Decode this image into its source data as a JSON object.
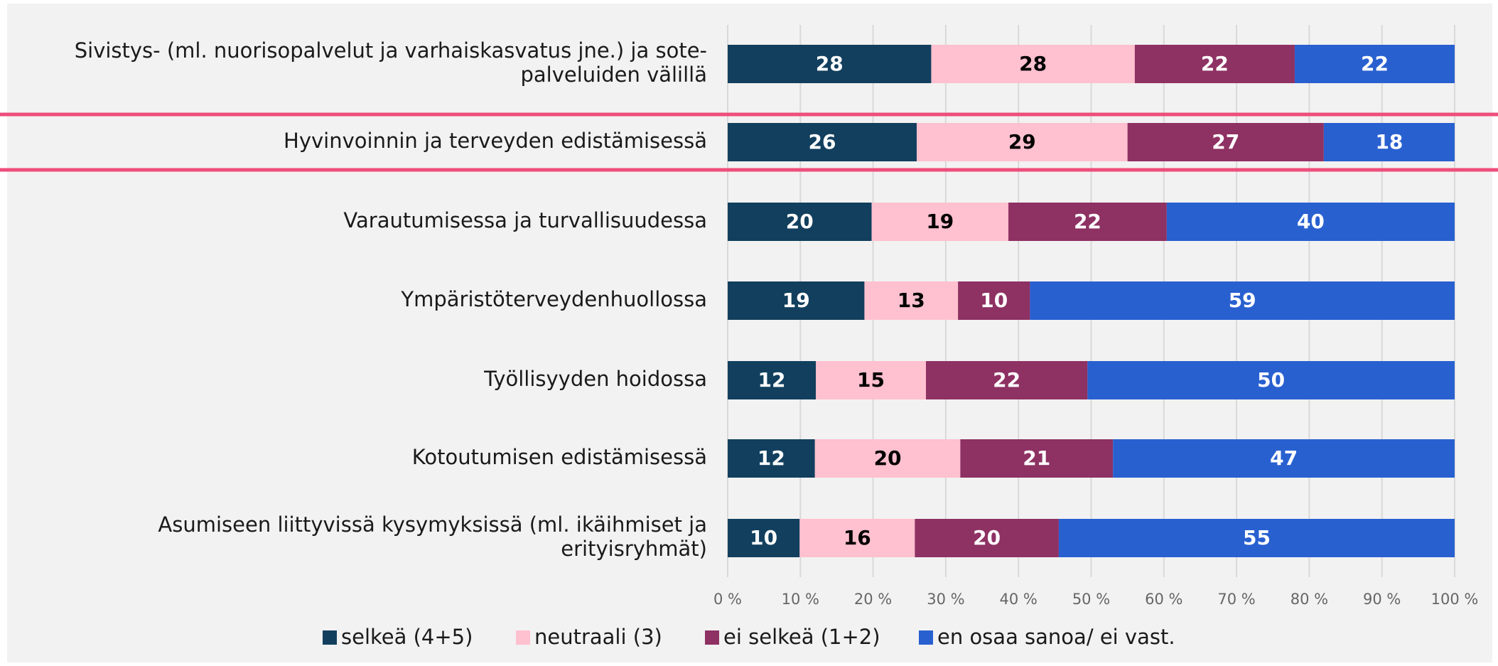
{
  "chart_data": {
    "type": "bar",
    "orientation": "horizontal",
    "stacking": "percent",
    "categories": [
      [
        "Sivistys- (ml. nuorisopalvelut ja varhaiskasvatus jne.) ja sote-",
        "palveluiden välillä"
      ],
      [
        "Hyvinvoinnin ja terveyden edistämisessä"
      ],
      [
        "Varautumisessa ja turvallisuudessa"
      ],
      [
        "Ympäristöterveydenhuollossa"
      ],
      [
        "Työllisyyden hoidossa"
      ],
      [
        "Kotoutumisen edistämisessä"
      ],
      [
        "Asumiseen liittyvissä kysymyksissä (ml. ikäihmiset ja",
        "erityisryhmät)"
      ]
    ],
    "series": [
      {
        "name": "selkeä (4+5)",
        "color": "#123f5e",
        "label_color": "#ffffff",
        "values": [
          28,
          26,
          20,
          19,
          12,
          12,
          10
        ]
      },
      {
        "name": "neutraali (3)",
        "color": "#ffc0cf",
        "label_color": "#000000",
        "values": [
          28,
          29,
          19,
          13,
          15,
          20,
          16
        ]
      },
      {
        "name": "ei selkeä (1+2)",
        "color": "#8e3163",
        "label_color": "#ffffff",
        "values": [
          22,
          27,
          22,
          10,
          22,
          21,
          20
        ]
      },
      {
        "name": "en osaa sanoa/ ei vast.",
        "color": "#2860d0",
        "label_color": "#ffffff",
        "values": [
          22,
          18,
          40,
          59,
          50,
          47,
          55
        ]
      }
    ],
    "xlim": [
      0,
      100
    ],
    "xticks": [
      {
        "value": 0,
        "label": "0 %"
      },
      {
        "value": 10,
        "label": "10 %"
      },
      {
        "value": 20,
        "label": "20 %"
      },
      {
        "value": 30,
        "label": "30 %"
      },
      {
        "value": 40,
        "label": "40 %"
      },
      {
        "value": 50,
        "label": "50 %"
      },
      {
        "value": 60,
        "label": "60 %"
      },
      {
        "value": 70,
        "label": "70 %"
      },
      {
        "value": 80,
        "label": "80 %"
      },
      {
        "value": 90,
        "label": "90 %"
      },
      {
        "value": 100,
        "label": "100 %"
      }
    ],
    "grid": true,
    "legend": "bottom"
  }
}
